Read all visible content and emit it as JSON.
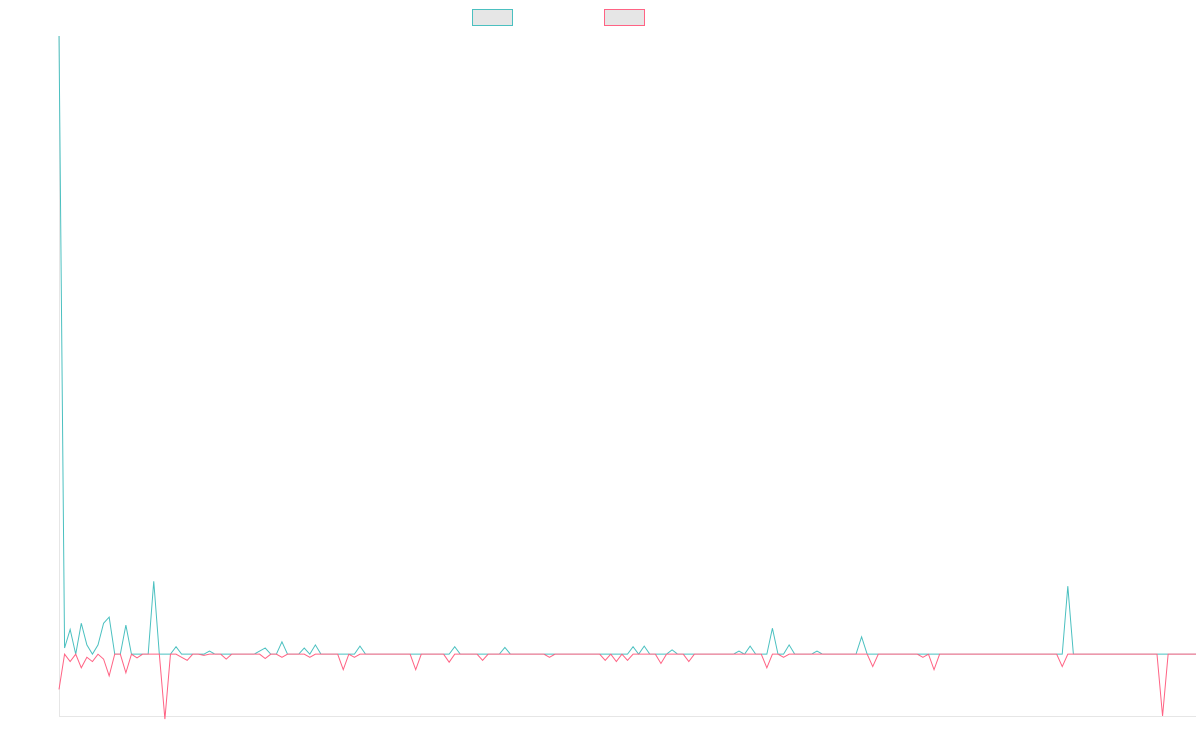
{
  "chart_data": {
    "type": "line",
    "title": "",
    "xlabel": "",
    "ylabel": "",
    "legend_position": "top-center",
    "grid": false,
    "x_start": 0,
    "x_end": 197,
    "ylim": [
      -0.1,
      1.0
    ],
    "series": [
      {
        "color": "#4bc0c0",
        "legend_fill": "#e6e6e6",
        "values": [
          1.0,
          0.01,
          0.04,
          0.0,
          0.05,
          0.015,
          0.0,
          0.015,
          0.05,
          0.06,
          0.0,
          0.0,
          0.047,
          0.0,
          0.0,
          0.0,
          0.0,
          0.118,
          0.0,
          0.0,
          0.0,
          0.012,
          0.0,
          0.0,
          0.0,
          0.0,
          0.0,
          0.005,
          0.0,
          0.0,
          0.0,
          0.0,
          0.0,
          0.0,
          0.0,
          0.0,
          0.005,
          0.01,
          0.0,
          0.0,
          0.02,
          0.0,
          0.0,
          0.0,
          0.01,
          0.0,
          0.015,
          0.0,
          0.0,
          0.0,
          0.0,
          0.0,
          0.0,
          0.0,
          0.013,
          0.0,
          0.0,
          0.0,
          0.0,
          0.0,
          0.0,
          0.0,
          0.0,
          0.0,
          0.0,
          0.0,
          0.0,
          0.0,
          0.0,
          0.0,
          0.0,
          0.012,
          0.0,
          0.0,
          0.0,
          0.0,
          0.0,
          0.0,
          0.0,
          0.0,
          0.011,
          0.0,
          0.0,
          0.0,
          0.0,
          0.0,
          0.0,
          0.0,
          0.0,
          0.0,
          0.0,
          0.0,
          0.0,
          0.0,
          0.0,
          0.0,
          0.0,
          0.0,
          0.0,
          0.0,
          0.0,
          0.0,
          0.0,
          0.012,
          0.0,
          0.013,
          0.0,
          0.0,
          0.0,
          0.0,
          0.007,
          0.0,
          0.0,
          0.0,
          0.0,
          0.0,
          0.0,
          0.0,
          0.0,
          0.0,
          0.0,
          0.0,
          0.005,
          0.0,
          0.013,
          0.0,
          0.0,
          0.0,
          0.042,
          0.0,
          0.0,
          0.015,
          0.0,
          0.0,
          0.0,
          0.0,
          0.005,
          0.0,
          0.0,
          0.0,
          0.0,
          0.0,
          0.0,
          0.0,
          0.028,
          0.0,
          0.0,
          0.0,
          0.0,
          0.0,
          0.0,
          0.0,
          0.0,
          0.0,
          0.0,
          0.0,
          0.0,
          0.0,
          0.0,
          0.0,
          0.0,
          0.0,
          0.0,
          0.0,
          0.0,
          0.0,
          0.0,
          0.0,
          0.0,
          0.0,
          0.0,
          0.0,
          0.0,
          0.0,
          0.0,
          0.0,
          0.0,
          0.0,
          0.0,
          0.0,
          0.0,
          0.11,
          0.0,
          0.0,
          0.0,
          0.0,
          0.0,
          0.0,
          0.0,
          0.0,
          0.0,
          0.0,
          0.0,
          0.0,
          0.0,
          0.0,
          0.0,
          0.0,
          0.0,
          0.0,
          0.0,
          0.0,
          0.0,
          0.0,
          0.0
        ]
      },
      {
        "color": "#ff6384",
        "legend_fill": "#e6e6e6",
        "values": [
          -0.057,
          0.0,
          -0.012,
          0.0,
          -0.022,
          -0.005,
          -0.012,
          0.0,
          -0.008,
          -0.035,
          0.0,
          0.0,
          -0.03,
          0.0,
          -0.006,
          0.0,
          0.0,
          0.0,
          0.0,
          -0.105,
          0.0,
          0.0,
          -0.005,
          -0.01,
          0.0,
          0.0,
          -0.002,
          0.0,
          0.0,
          0.0,
          -0.008,
          0.0,
          0.0,
          0.0,
          0.0,
          0.0,
          0.0,
          -0.007,
          0.0,
          0.0,
          -0.005,
          0.0,
          0.0,
          0.0,
          0.0,
          -0.005,
          0.0,
          0.0,
          0.0,
          0.0,
          0.0,
          -0.025,
          0.0,
          -0.005,
          0.0,
          0.0,
          0.0,
          0.0,
          0.0,
          0.0,
          0.0,
          0.0,
          0.0,
          0.0,
          -0.025,
          0.0,
          0.0,
          0.0,
          0.0,
          0.0,
          -0.013,
          0.0,
          0.0,
          0.0,
          0.0,
          0.0,
          -0.01,
          0.0,
          0.0,
          0.0,
          0.0,
          0.0,
          0.0,
          0.0,
          0.0,
          0.0,
          0.0,
          0.0,
          -0.005,
          0.0,
          0.0,
          0.0,
          0.0,
          0.0,
          0.0,
          0.0,
          0.0,
          0.0,
          -0.01,
          0.0,
          -0.012,
          0.0,
          -0.01,
          0.0,
          0.0,
          0.0,
          0.0,
          0.0,
          -0.015,
          0.0,
          0.0,
          0.0,
          0.0,
          -0.012,
          0.0,
          0.0,
          0.0,
          0.0,
          0.0,
          0.0,
          0.0,
          0.0,
          0.0,
          0.0,
          0.0,
          0.0,
          0.0,
          -0.022,
          0.0,
          0.0,
          -0.005,
          0.0,
          0.0,
          0.0,
          0.0,
          0.0,
          0.0,
          0.0,
          0.0,
          0.0,
          0.0,
          0.0,
          0.0,
          0.0,
          0.0,
          0.0,
          -0.02,
          0.0,
          0.0,
          0.0,
          0.0,
          0.0,
          0.0,
          0.0,
          0.0,
          -0.005,
          0.0,
          -0.025,
          0.0,
          0.0,
          0.0,
          0.0,
          0.0,
          0.0,
          0.0,
          0.0,
          0.0,
          0.0,
          0.0,
          0.0,
          0.0,
          0.0,
          0.0,
          0.0,
          0.0,
          0.0,
          0.0,
          0.0,
          0.0,
          0.0,
          -0.02,
          0.0,
          0.0,
          0.0,
          0.0,
          0.0,
          0.0,
          0.0,
          0.0,
          0.0,
          0.0,
          0.0,
          0.0,
          0.0,
          0.0,
          0.0,
          0.0,
          0.0,
          -0.1,
          0.0,
          0.0,
          0.0,
          0.0,
          0.0,
          0.0
        ]
      }
    ]
  }
}
